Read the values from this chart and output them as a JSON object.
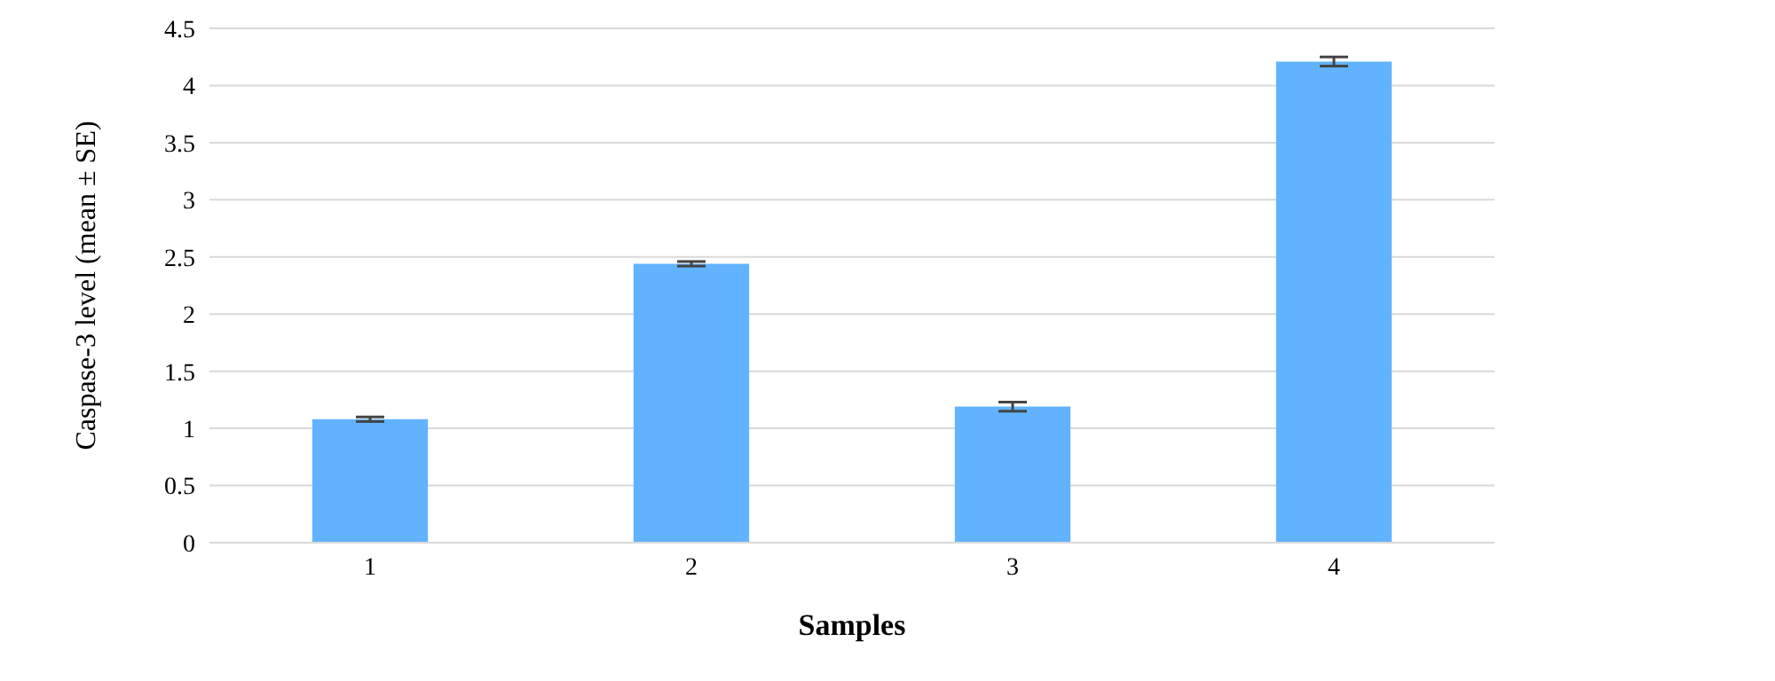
{
  "chart_data": {
    "type": "bar",
    "xlabel": "Samples",
    "ylabel": "Caspase-3 level (mean ± SE)",
    "categories": [
      "1",
      "2",
      "3",
      "4"
    ],
    "values": [
      1.08,
      2.44,
      1.19,
      4.21
    ],
    "errors": [
      0.02,
      0.02,
      0.04,
      0.04
    ],
    "color": "#61b3ff",
    "ylim": [
      0,
      4.5
    ],
    "yticks": [
      0,
      0.5,
      1,
      1.5,
      2,
      2.5,
      3,
      3.5,
      4,
      4.5
    ],
    "grid": "y"
  }
}
